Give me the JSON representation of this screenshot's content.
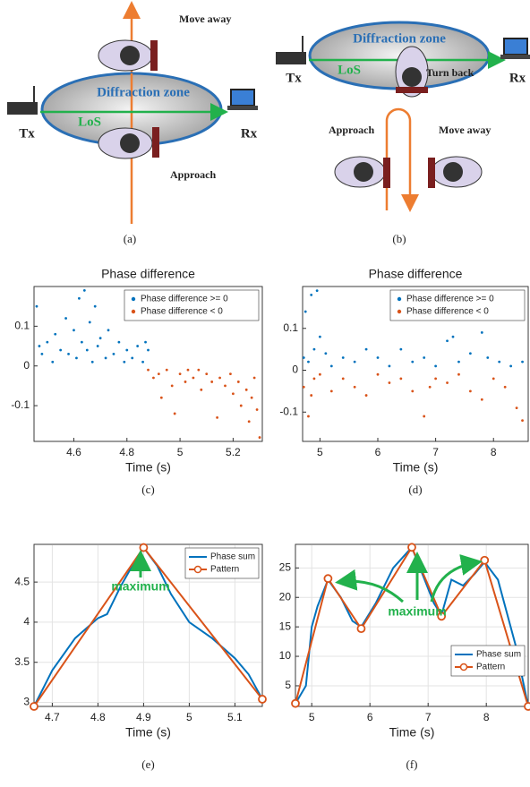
{
  "diagrams": [
    {
      "caption": "(a)",
      "zone": "Diffraction zone",
      "los": "LoS",
      "tx": "Tx",
      "rx": "Rx",
      "move_away": "Move away",
      "approach": "Approach"
    },
    {
      "caption": "(b)",
      "zone": "Diffraction zone",
      "los": "LoS",
      "tx": "Tx",
      "rx": "Rx",
      "turn_back": "Turn back",
      "approach": "Approach",
      "move_away": "Move away"
    }
  ],
  "chart_data": [
    {
      "type": "scatter",
      "title": "Phase difference",
      "xlabel": "Time (s)",
      "caption": "(c)",
      "xlim": [
        4.45,
        5.31
      ],
      "ylim": [
        -0.19,
        0.2
      ],
      "xticks": [
        4.6,
        4.8,
        5,
        5.2
      ],
      "yticks": [
        -0.1,
        0,
        0.1
      ],
      "grid": false,
      "legend": "upper-right",
      "series": [
        {
          "name": "Phase difference >= 0",
          "color": "#0072BD",
          "x": [
            4.46,
            4.47,
            4.48,
            4.5,
            4.52,
            4.53,
            4.55,
            4.57,
            4.58,
            4.6,
            4.61,
            4.62,
            4.63,
            4.64,
            4.65,
            4.66,
            4.67,
            4.68,
            4.69,
            4.7,
            4.72,
            4.73,
            4.75,
            4.77,
            4.79,
            4.8,
            4.82,
            4.84,
            4.86,
            4.87,
            4.88
          ],
          "values": [
            0.15,
            0.05,
            0.03,
            0.06,
            0.01,
            0.08,
            0.04,
            0.12,
            0.03,
            0.09,
            0.02,
            0.17,
            0.06,
            0.19,
            0.04,
            0.11,
            0.01,
            0.15,
            0.05,
            0.07,
            0.02,
            0.09,
            0.03,
            0.06,
            0.01,
            0.04,
            0.02,
            0.05,
            0.01,
            0.06,
            0.04
          ]
        },
        {
          "name": "Phase difference < 0",
          "color": "#D95319",
          "x": [
            4.88,
            4.9,
            4.92,
            4.93,
            4.95,
            4.97,
            4.98,
            5,
            5.02,
            5.03,
            5.05,
            5.07,
            5.08,
            5.1,
            5.12,
            5.14,
            5.15,
            5.17,
            5.19,
            5.2,
            5.22,
            5.23,
            5.25,
            5.26,
            5.27,
            5.28,
            5.29,
            5.3
          ],
          "values": [
            -0.01,
            -0.03,
            -0.02,
            -0.08,
            -0.01,
            -0.05,
            -0.12,
            -0.02,
            -0.04,
            -0.01,
            -0.03,
            -0.01,
            -0.06,
            -0.02,
            -0.04,
            -0.13,
            -0.03,
            -0.05,
            -0.02,
            -0.07,
            -0.04,
            -0.1,
            -0.06,
            -0.14,
            -0.08,
            -0.03,
            -0.11,
            -0.18
          ]
        }
      ]
    },
    {
      "type": "scatter",
      "title": "Phase difference",
      "xlabel": "Time (s)",
      "caption": "(d)",
      "xlim": [
        4.7,
        8.6
      ],
      "ylim": [
        -0.17,
        0.2
      ],
      "xticks": [
        5,
        6,
        7,
        8
      ],
      "yticks": [
        -0.1,
        0,
        0.1
      ],
      "grid": false,
      "legend": "upper-right",
      "series": [
        {
          "name": "Phase difference >= 0",
          "color": "#0072BD",
          "x": [
            4.72,
            4.75,
            4.8,
            4.85,
            4.9,
            4.95,
            5.0,
            5.1,
            5.2,
            5.4,
            5.6,
            5.8,
            6.0,
            6.2,
            6.4,
            6.6,
            6.8,
            7.0,
            7.2,
            7.3,
            7.4,
            7.6,
            7.8,
            7.9,
            8.1,
            8.3,
            8.5
          ],
          "values": [
            0.03,
            0.14,
            0.02,
            0.18,
            0.05,
            0.19,
            0.08,
            0.04,
            0.01,
            0.03,
            0.02,
            0.05,
            0.03,
            0.01,
            0.05,
            0.02,
            0.03,
            0.01,
            0.07,
            0.08,
            0.02,
            0.04,
            0.09,
            0.03,
            0.02,
            0.01,
            0.02
          ]
        },
        {
          "name": "Phase difference < 0",
          "color": "#D95319",
          "x": [
            4.72,
            4.8,
            4.85,
            4.9,
            5.0,
            5.2,
            5.4,
            5.6,
            5.8,
            6.0,
            6.2,
            6.4,
            6.6,
            6.8,
            6.9,
            7.0,
            7.2,
            7.4,
            7.6,
            7.8,
            8.0,
            8.2,
            8.4,
            8.5
          ],
          "values": [
            -0.04,
            -0.11,
            -0.06,
            -0.02,
            -0.01,
            -0.05,
            -0.02,
            -0.04,
            -0.06,
            -0.01,
            -0.03,
            -0.02,
            -0.05,
            -0.11,
            -0.04,
            -0.02,
            -0.03,
            -0.01,
            -0.05,
            -0.07,
            -0.02,
            -0.04,
            -0.09,
            -0.12
          ]
        }
      ]
    },
    {
      "type": "line",
      "xlabel": "Time (s)",
      "caption": "(e)",
      "annotation": "maximum",
      "xlim": [
        4.66,
        5.16
      ],
      "ylim": [
        2.95,
        4.97
      ],
      "xticks": [
        4.7,
        4.8,
        4.9,
        5,
        5.1
      ],
      "yticks": [
        3,
        3.5,
        4,
        4.5
      ],
      "grid": true,
      "legend": "upper-right",
      "series": [
        {
          "name": "Phase sum",
          "color": "#0072BD",
          "x": [
            4.66,
            4.7,
            4.75,
            4.8,
            4.82,
            4.85,
            4.88,
            4.9,
            4.93,
            4.96,
            5,
            5.05,
            5.1,
            5.13,
            5.16
          ],
          "values": [
            2.95,
            3.4,
            3.8,
            4.05,
            4.1,
            4.45,
            4.75,
            4.93,
            4.7,
            4.35,
            4.0,
            3.8,
            3.55,
            3.35,
            3.04
          ]
        },
        {
          "name": "Pattern",
          "color": "#D95319",
          "marker": "circle",
          "x": [
            4.66,
            4.9,
            5.16
          ],
          "values": [
            2.95,
            4.93,
            3.04
          ]
        }
      ]
    },
    {
      "type": "line",
      "xlabel": "Time (s)",
      "caption": "(f)",
      "annotation": "maximum",
      "xlim": [
        4.72,
        8.72
      ],
      "ylim": [
        1.5,
        29
      ],
      "xticks": [
        5,
        6,
        7,
        8
      ],
      "yticks": [
        5,
        10,
        15,
        20,
        25
      ],
      "grid": true,
      "legend": "lower-right",
      "series": [
        {
          "name": "Phase sum",
          "color": "#0072BD",
          "x": [
            4.72,
            4.9,
            5.0,
            5.1,
            5.28,
            5.5,
            5.7,
            5.85,
            6.1,
            6.4,
            6.72,
            6.9,
            7.1,
            7.23,
            7.4,
            7.6,
            7.8,
            7.97,
            8.2,
            8.5,
            8.72
          ],
          "values": [
            2,
            5,
            15,
            18.5,
            23,
            20,
            16,
            15,
            19,
            25,
            28.5,
            24,
            19,
            17,
            23,
            22,
            24,
            26,
            23,
            12,
            1.5
          ]
        },
        {
          "name": "Pattern",
          "color": "#D95319",
          "marker": "circle",
          "x": [
            4.72,
            5.28,
            5.85,
            6.72,
            7.23,
            7.97,
            8.72
          ],
          "values": [
            2,
            23.2,
            14.7,
            28.5,
            16.8,
            26.3,
            1.5
          ]
        }
      ]
    }
  ]
}
